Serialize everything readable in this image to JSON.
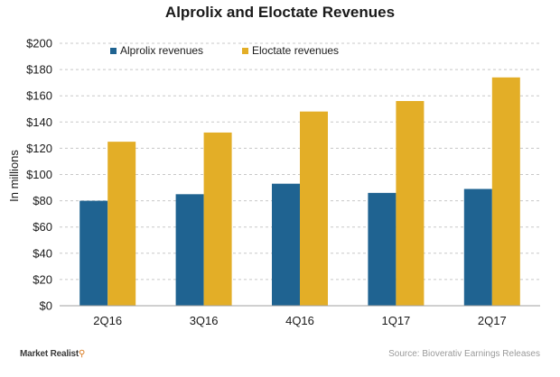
{
  "chart_data": {
    "type": "bar",
    "title": "Alprolix  and  Eloctate  Revenues",
    "ylabel": "In millions",
    "xlabel": "",
    "categories": [
      "2Q16",
      "3Q16",
      "4Q16",
      "1Q17",
      "2Q17"
    ],
    "series": [
      {
        "name": "Alprolix revenues",
        "color": "#1f6391",
        "values": [
          80,
          85,
          93,
          86,
          89
        ]
      },
      {
        "name": "Eloctate revenues",
        "color": "#e3ae27",
        "values": [
          125,
          132,
          148,
          156,
          174
        ]
      }
    ],
    "ylim": [
      0,
      200
    ],
    "ytick_step": 20,
    "ytick_prefix": "$",
    "grid": true,
    "legend": "top-left"
  },
  "footer": {
    "brand": "Market Realist",
    "source": "Source:  Bioverativ  Earnings  Releases"
  }
}
